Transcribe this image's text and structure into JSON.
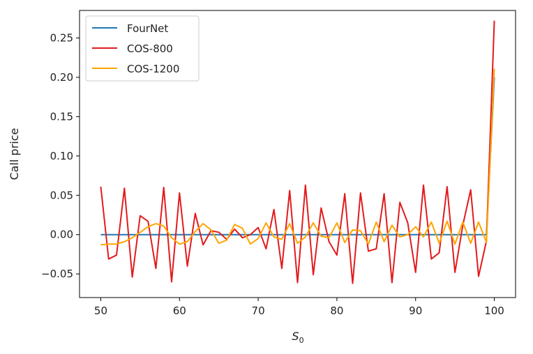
{
  "chart_data": {
    "type": "line",
    "title": "",
    "xlabel": "S",
    "xlabel_subscript": "0",
    "ylabel": "Call price",
    "xlim": [
      47.3,
      102.7
    ],
    "ylim": [
      -0.08,
      0.285
    ],
    "xticks": [
      50,
      60,
      70,
      80,
      90,
      100
    ],
    "xtick_labels": [
      "50",
      "60",
      "70",
      "80",
      "90",
      "100"
    ],
    "yticks": [
      -0.05,
      0.0,
      0.05,
      0.1,
      0.15,
      0.2,
      0.25
    ],
    "ytick_labels": [
      "−0.05",
      "0.00",
      "0.05",
      "0.10",
      "0.15",
      "0.20",
      "0.25"
    ],
    "grid": false,
    "legend_position": "top-left",
    "x": [
      50,
      51,
      52,
      53,
      54,
      55,
      56,
      57,
      58,
      59,
      60,
      61,
      62,
      63,
      64,
      65,
      66,
      67,
      68,
      69,
      70,
      71,
      72,
      73,
      74,
      75,
      76,
      77,
      78,
      79,
      80,
      81,
      82,
      83,
      84,
      85,
      86,
      87,
      88,
      89,
      90,
      91,
      92,
      93,
      94,
      95,
      96,
      97,
      98,
      99,
      100
    ],
    "series": [
      {
        "name": "FourNet",
        "color": "#1f77b4",
        "values": [
          0,
          0,
          0,
          0,
          0,
          0,
          0,
          0,
          0,
          0,
          0,
          0,
          0,
          0,
          0,
          0,
          0,
          0,
          0,
          0,
          0,
          0,
          0,
          0,
          0,
          0,
          0,
          0,
          0,
          0,
          0,
          0,
          0,
          0,
          0,
          0,
          0,
          0,
          0,
          0,
          0,
          0,
          0,
          0,
          0,
          0,
          0,
          0,
          0,
          0,
          0.2
        ]
      },
      {
        "name": "COS-800",
        "color": "#e31a1c",
        "values": [
          0.061,
          -0.031,
          -0.026,
          0.059,
          -0.054,
          0.024,
          0.017,
          -0.043,
          0.06,
          -0.06,
          0.053,
          -0.04,
          0.027,
          -0.013,
          0.005,
          0.003,
          -0.006,
          0.007,
          -0.004,
          0.0,
          0.009,
          -0.018,
          0.032,
          -0.043,
          0.056,
          -0.061,
          0.063,
          -0.051,
          0.034,
          -0.009,
          -0.026,
          0.052,
          -0.062,
          0.053,
          -0.021,
          -0.018,
          0.052,
          -0.061,
          0.041,
          0.015,
          -0.048,
          0.063,
          -0.031,
          -0.023,
          0.061,
          -0.048,
          0.012,
          0.057,
          -0.053,
          -0.008,
          0.272
        ]
      },
      {
        "name": "COS-1200",
        "color": "#ffa500",
        "values": [
          -0.013,
          -0.012,
          -0.012,
          -0.009,
          -0.004,
          0.003,
          0.01,
          0.014,
          0.011,
          -0.004,
          -0.012,
          -0.009,
          0.004,
          0.014,
          0.006,
          -0.011,
          -0.007,
          0.013,
          0.008,
          -0.012,
          -0.005,
          0.015,
          -0.003,
          -0.006,
          0.014,
          -0.011,
          -0.003,
          0.015,
          -0.002,
          -0.004,
          0.015,
          -0.01,
          0.006,
          0.005,
          -0.012,
          0.016,
          -0.009,
          0.012,
          -0.003,
          0.0,
          0.01,
          -0.003,
          0.016,
          -0.011,
          0.017,
          -0.012,
          0.016,
          -0.011,
          0.016,
          -0.01,
          0.211
        ]
      }
    ]
  }
}
